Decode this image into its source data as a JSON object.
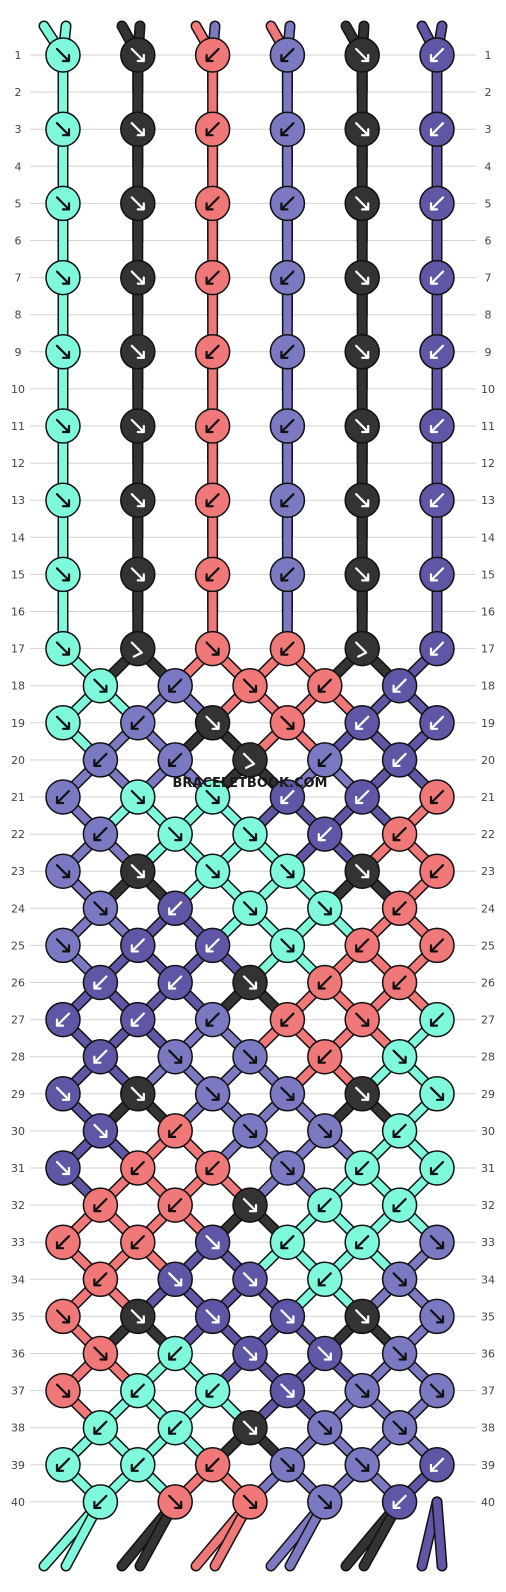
{
  "watermark": "BRACELETBOOK.COM",
  "colors": {
    "E": "#7ef9dc",
    "A": "#333333",
    "B": "#f07878",
    "C": "#7a79c2",
    "D": "#5f57a6"
  },
  "top_labels": [
    "E",
    "E",
    "A",
    "A",
    "B",
    "C",
    "B",
    "C",
    "A",
    "A",
    "D",
    "D"
  ],
  "bottom_labels": [
    "E",
    "E",
    "A",
    "A",
    "B",
    "B",
    "C",
    "C",
    "A",
    "A",
    "D",
    "D"
  ],
  "row_numbers": [
    "1",
    "2",
    "3",
    "4",
    "5",
    "6",
    "7",
    "8",
    "9",
    "10",
    "11",
    "12",
    "13",
    "14",
    "15",
    "16",
    "17",
    "18",
    "19",
    "20",
    "21",
    "22",
    "23",
    "24",
    "25",
    "26",
    "27",
    "28",
    "29",
    "30",
    "31",
    "32",
    "33",
    "34",
    "35",
    "36",
    "37",
    "38",
    "39",
    "40"
  ],
  "rows": [
    {
      "knots": [
        [
          "E",
          "rr"
        ],
        [
          "A",
          "rr"
        ],
        [
          "B",
          "ll"
        ],
        [
          "C",
          "ll"
        ],
        [
          "A",
          "rr"
        ],
        [
          "D",
          "ll"
        ]
      ]
    },
    {
      "knots": []
    },
    {
      "knots": [
        [
          "E",
          "rr"
        ],
        [
          "A",
          "rr"
        ],
        [
          "B",
          "ll"
        ],
        [
          "C",
          "ll"
        ],
        [
          "A",
          "rr"
        ],
        [
          "D",
          "ll"
        ]
      ]
    },
    {
      "knots": []
    },
    {
      "knots": [
        [
          "E",
          "rr"
        ],
        [
          "A",
          "rr"
        ],
        [
          "B",
          "ll"
        ],
        [
          "C",
          "ll"
        ],
        [
          "A",
          "rr"
        ],
        [
          "D",
          "ll"
        ]
      ]
    },
    {
      "knots": []
    },
    {
      "knots": [
        [
          "E",
          "rr"
        ],
        [
          "A",
          "rr"
        ],
        [
          "B",
          "ll"
        ],
        [
          "C",
          "ll"
        ],
        [
          "A",
          "rr"
        ],
        [
          "D",
          "ll"
        ]
      ]
    },
    {
      "knots": []
    },
    {
      "knots": [
        [
          "E",
          "rr"
        ],
        [
          "A",
          "rr"
        ],
        [
          "B",
          "ll"
        ],
        [
          "C",
          "ll"
        ],
        [
          "A",
          "rr"
        ],
        [
          "D",
          "ll"
        ]
      ]
    },
    {
      "knots": []
    },
    {
      "knots": [
        [
          "E",
          "rr"
        ],
        [
          "A",
          "rr"
        ],
        [
          "B",
          "ll"
        ],
        [
          "C",
          "ll"
        ],
        [
          "A",
          "rr"
        ],
        [
          "D",
          "ll"
        ]
      ]
    },
    {
      "knots": []
    },
    {
      "knots": [
        [
          "E",
          "rr"
        ],
        [
          "A",
          "rr"
        ],
        [
          "B",
          "ll"
        ],
        [
          "C",
          "ll"
        ],
        [
          "A",
          "rr"
        ],
        [
          "D",
          "ll"
        ]
      ]
    },
    {
      "knots": []
    },
    {
      "knots": [
        [
          "E",
          "rr"
        ],
        [
          "A",
          "rr"
        ],
        [
          "B",
          "ll"
        ],
        [
          "C",
          "ll"
        ],
        [
          "A",
          "rr"
        ],
        [
          "D",
          "ll"
        ]
      ]
    },
    {
      "knots": []
    },
    {
      "knots": [
        [
          "E",
          "r"
        ],
        [
          "A",
          "rl"
        ],
        [
          "B",
          "r"
        ],
        [
          "B",
          "l"
        ],
        [
          "A",
          "rl"
        ],
        [
          "D",
          "l"
        ]
      ]
    },
    {
      "knots": [
        [
          "E",
          "r"
        ],
        [
          "C",
          "l"
        ],
        [
          "B",
          "r"
        ],
        [
          "B",
          "l"
        ],
        [
          "D",
          "l"
        ]
      ]
    },
    {
      "knots": [
        [
          "E",
          "r"
        ],
        [
          "C",
          "l"
        ],
        [
          "A",
          "rr"
        ],
        [
          "B",
          "r"
        ],
        [
          "D",
          "l"
        ],
        [
          "D",
          "l"
        ]
      ]
    },
    {
      "knots": [
        [
          "C",
          "l"
        ],
        [
          "C",
          "l"
        ],
        [
          "A",
          "rl"
        ],
        [
          "C",
          "l"
        ],
        [
          "D",
          "l"
        ]
      ]
    },
    {
      "knots": [
        [
          "C",
          "l"
        ],
        [
          "E",
          "r"
        ],
        [
          "E",
          "r"
        ],
        [
          "D",
          "l"
        ],
        [
          "D",
          "l"
        ],
        [
          "B",
          "l"
        ]
      ]
    },
    {
      "knots": [
        [
          "C",
          "l"
        ],
        [
          "E",
          "r"
        ],
        [
          "E",
          "r"
        ],
        [
          "D",
          "l"
        ],
        [
          "B",
          "l"
        ]
      ]
    },
    {
      "knots": [
        [
          "C",
          "r"
        ],
        [
          "A",
          "rr"
        ],
        [
          "E",
          "r"
        ],
        [
          "E",
          "r"
        ],
        [
          "A",
          "rr"
        ],
        [
          "B",
          "l"
        ]
      ]
    },
    {
      "knots": [
        [
          "C",
          "r"
        ],
        [
          "D",
          "l"
        ],
        [
          "E",
          "r"
        ],
        [
          "E",
          "r"
        ],
        [
          "B",
          "l"
        ]
      ]
    },
    {
      "knots": [
        [
          "C",
          "r"
        ],
        [
          "D",
          "l"
        ],
        [
          "D",
          "l"
        ],
        [
          "E",
          "r"
        ],
        [
          "B",
          "l"
        ],
        [
          "B",
          "l"
        ]
      ]
    },
    {
      "knots": [
        [
          "D",
          "l"
        ],
        [
          "D",
          "l"
        ],
        [
          "A",
          "rr"
        ],
        [
          "B",
          "l"
        ],
        [
          "B",
          "l"
        ]
      ]
    },
    {
      "knots": [
        [
          "D",
          "l"
        ],
        [
          "D",
          "l"
        ],
        [
          "C",
          "l"
        ],
        [
          "B",
          "l"
        ],
        [
          "B",
          "r"
        ],
        [
          "E",
          "l"
        ]
      ]
    },
    {
      "knots": [
        [
          "D",
          "l"
        ],
        [
          "C",
          "r"
        ],
        [
          "C",
          "r"
        ],
        [
          "B",
          "l"
        ],
        [
          "E",
          "r"
        ]
      ]
    },
    {
      "knots": [
        [
          "D",
          "r"
        ],
        [
          "A",
          "rr"
        ],
        [
          "C",
          "r"
        ],
        [
          "C",
          "r"
        ],
        [
          "A",
          "rr"
        ],
        [
          "E",
          "r"
        ]
      ]
    },
    {
      "knots": [
        [
          "D",
          "r"
        ],
        [
          "B",
          "l"
        ],
        [
          "C",
          "r"
        ],
        [
          "C",
          "r"
        ],
        [
          "E",
          "l"
        ]
      ]
    },
    {
      "knots": [
        [
          "D",
          "r"
        ],
        [
          "B",
          "l"
        ],
        [
          "B",
          "l"
        ],
        [
          "C",
          "r"
        ],
        [
          "E",
          "l"
        ],
        [
          "E",
          "l"
        ]
      ]
    },
    {
      "knots": [
        [
          "B",
          "l"
        ],
        [
          "B",
          "l"
        ],
        [
          "A",
          "rr"
        ],
        [
          "E",
          "l"
        ],
        [
          "E",
          "l"
        ]
      ]
    },
    {
      "knots": [
        [
          "B",
          "l"
        ],
        [
          "B",
          "l"
        ],
        [
          "D",
          "r"
        ],
        [
          "E",
          "l"
        ],
        [
          "E",
          "l"
        ],
        [
          "C",
          "r"
        ]
      ]
    },
    {
      "knots": [
        [
          "B",
          "l"
        ],
        [
          "D",
          "r"
        ],
        [
          "D",
          "r"
        ],
        [
          "E",
          "l"
        ],
        [
          "C",
          "r"
        ]
      ]
    },
    {
      "knots": [
        [
          "B",
          "r"
        ],
        [
          "A",
          "rr"
        ],
        [
          "D",
          "r"
        ],
        [
          "D",
          "r"
        ],
        [
          "A",
          "rr"
        ],
        [
          "C",
          "r"
        ]
      ]
    },
    {
      "knots": [
        [
          "B",
          "r"
        ],
        [
          "E",
          "l"
        ],
        [
          "D",
          "r"
        ],
        [
          "D",
          "r"
        ],
        [
          "C",
          "r"
        ]
      ]
    },
    {
      "knots": [
        [
          "B",
          "r"
        ],
        [
          "E",
          "l"
        ],
        [
          "E",
          "l"
        ],
        [
          "D",
          "r"
        ],
        [
          "C",
          "r"
        ],
        [
          "C",
          "r"
        ]
      ]
    },
    {
      "knots": [
        [
          "E",
          "l"
        ],
        [
          "E",
          "l"
        ],
        [
          "A",
          "rr"
        ],
        [
          "C",
          "r"
        ],
        [
          "C",
          "r"
        ]
      ]
    },
    {
      "knots": [
        [
          "E",
          "l"
        ],
        [
          "E",
          "l"
        ],
        [
          "B",
          "l"
        ],
        [
          "C",
          "r"
        ],
        [
          "C",
          "r"
        ],
        [
          "D",
          "l"
        ]
      ]
    },
    {
      "knots": [
        [
          "E",
          "l"
        ],
        [
          "B",
          "r"
        ],
        [
          "B",
          "r"
        ],
        [
          "C",
          "r"
        ],
        [
          "D",
          "l"
        ]
      ]
    }
  ]
}
